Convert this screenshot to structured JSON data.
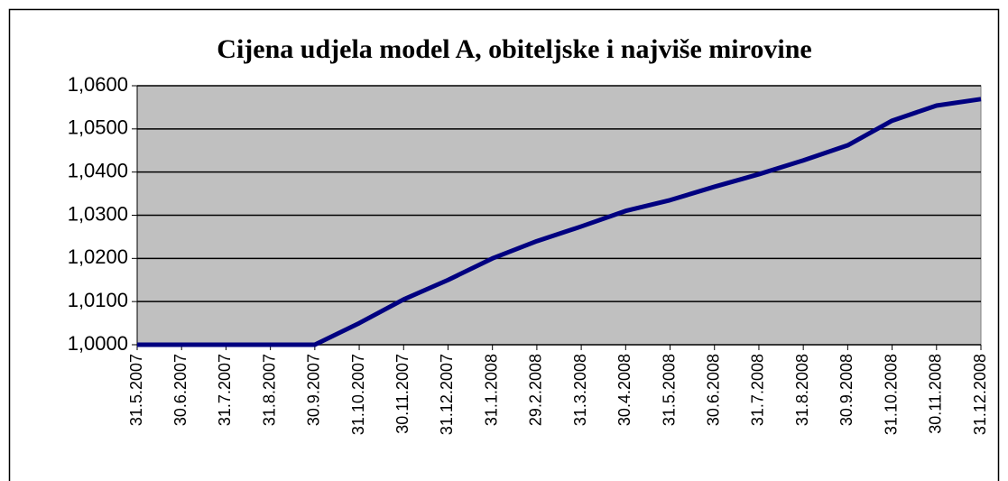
{
  "chart_data": {
    "type": "line",
    "title": "Cijena udjela model A, obiteljske i najviše mirovine",
    "categories": [
      "31.5.2007",
      "30.6.2007",
      "31.7.2007",
      "31.8.2007",
      "30.9.2007",
      "31.10.2007",
      "30.11.2007",
      "31.12.2007",
      "31.1.2008",
      "29.2.2008",
      "31.3.2008",
      "30.4.2008",
      "31.5.2008",
      "30.6.2008",
      "31.7.2008",
      "31.8.2008",
      "30.9.2008",
      "31.10.2008",
      "30.11.2008",
      "31.12.2008"
    ],
    "series": [
      {
        "name": "Cijena udjela",
        "color": "#000080",
        "values": [
          1.0,
          1.0,
          1.0,
          1.0,
          1.0,
          1.005,
          1.0105,
          1.015,
          1.02,
          1.024,
          1.0274,
          1.031,
          1.0335,
          1.0366,
          1.0395,
          1.0427,
          1.0462,
          1.0519,
          1.0554,
          1.0569
        ]
      }
    ],
    "ylim": [
      1.0,
      1.06
    ],
    "yticks": [
      {
        "value": 1.0,
        "label": "1,0000"
      },
      {
        "value": 1.01,
        "label": "1,0100"
      },
      {
        "value": 1.02,
        "label": "1,0200"
      },
      {
        "value": 1.03,
        "label": "1,0300"
      },
      {
        "value": 1.04,
        "label": "1,0400"
      },
      {
        "value": 1.05,
        "label": "1,0500"
      },
      {
        "value": 1.06,
        "label": "1,0600"
      }
    ],
    "grid": true,
    "plot_background": "#c0c0c0"
  }
}
